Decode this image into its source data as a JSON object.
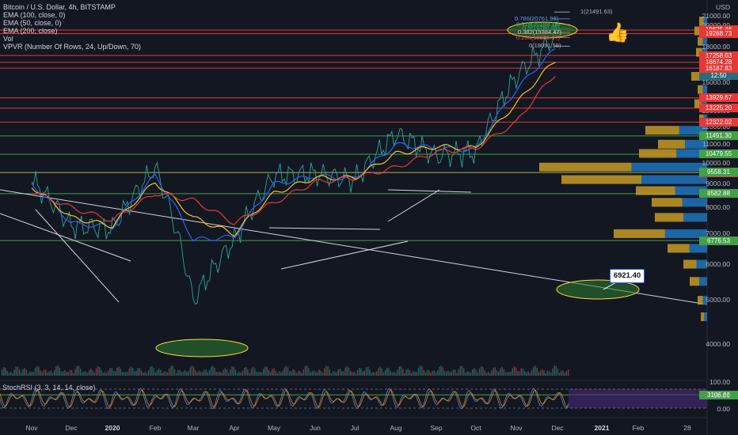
{
  "header": {
    "symbol_line": "Bitcoin / U.S. Dollar, 4h, BITSTAMP",
    "indicators": [
      "EMA (100, close, 0)",
      "EMA (50, close, 0)",
      "EMA (200, close)",
      "Vol",
      "VPVR (Number Of Rows, 24, Up/Down, 70)"
    ],
    "currency": "USD"
  },
  "rsi_label": "StochRSI (3, 3, 14, 14, close)",
  "price_now": "12:50",
  "callout": "6921.40",
  "levels_red": [
    "19625.46",
    "19268.73",
    "17258.03",
    "16674.28",
    "16187.83",
    "13929.67",
    "13225.20",
    "12322.02",
    "9540.75"
  ],
  "levels_green": [
    "11491.30",
    "10479.55",
    "9558.31",
    "8582.88",
    "6776.53",
    "3106.86"
  ],
  "fib_labels": [
    {
      "text": "1(21491.63)",
      "color": "#b2b5be"
    },
    {
      "text": "0.786(20761.96)",
      "color": "#5b9cf6"
    },
    {
      "text": "0.618(20189.15)",
      "color": "#4caf50"
    },
    {
      "text": "0.5(19786.81)",
      "color": "#26a69a"
    },
    {
      "text": "0.382(19384.47)",
      "color": "#d1d4dc"
    },
    {
      "text": "0.236(18886.87)",
      "color": "#ef5350"
    },
    {
      "text": "0(18091.59)",
      "color": "#b2b5be"
    }
  ],
  "chart_data": {
    "type": "line",
    "title": "Bitcoin / U.S. Dollar, 4h, BITSTAMP",
    "x": [
      "Nov",
      "Dec",
      "2020",
      "Feb",
      "Mar",
      "Apr",
      "May",
      "Jun",
      "Jul",
      "Aug",
      "Sep",
      "Oct",
      "Nov",
      "Dec",
      "2021",
      "Feb",
      "28"
    ],
    "series": [
      {
        "name": "BTCUSD",
        "values": [
          9200,
          7300,
          7200,
          9800,
          5000,
          6800,
          9400,
          9500,
          9200,
          11600,
          10400,
          10600,
          15500,
          19200,
          null,
          null,
          null
        ],
        "color": "#26a69a"
      },
      {
        "name": "EMA (50, close, 0)",
        "values": [
          9000,
          7400,
          7250,
          9400,
          6800,
          6900,
          9000,
          9400,
          9250,
          11000,
          10800,
          10700,
          14500,
          18000,
          null,
          null,
          null
        ],
        "color": "#2962ff"
      },
      {
        "name": "EMA (100, close, 0)",
        "values": [
          8900,
          7600,
          7300,
          9100,
          7600,
          7000,
          8600,
          9300,
          9300,
          10500,
          10900,
          10800,
          13500,
          17000,
          null,
          null,
          null
        ],
        "color": "#f7c21e"
      },
      {
        "name": "EMA (200, close)",
        "values": [
          8700,
          8000,
          7500,
          8600,
          8300,
          7400,
          8200,
          9100,
          9300,
          9800,
          10600,
          10800,
          12300,
          15900,
          null,
          null,
          null
        ],
        "color": "#e53935"
      }
    ],
    "y_ticks": [
      21000,
      20000,
      19000,
      18000,
      17000,
      16000,
      15000,
      14000,
      13000,
      12000,
      11000,
      10000,
      9000,
      8000,
      7000,
      6000,
      5000,
      4000
    ],
    "rsi_ticks": [
      "100.00",
      "50.00",
      "0.00"
    ],
    "log_scale": true,
    "grid": false
  }
}
